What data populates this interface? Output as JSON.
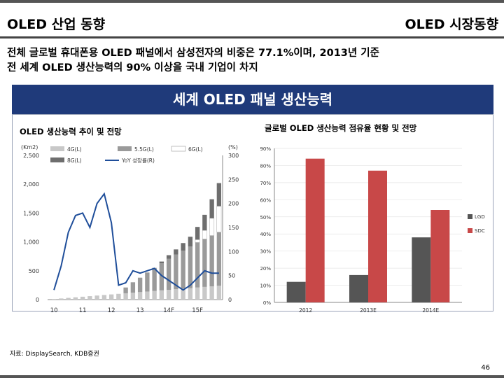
{
  "header": {
    "left_title": "OLED 산업 동향",
    "right_title": "OLED 시장동향"
  },
  "summary": {
    "line1": "전체 글로벌 휴대폰용 OLED 패널에서 삼성전자의 비중은 77.1%이며, 2013년 기준",
    "line2": "전 세계 OLED 생산능력의 90% 이상을 국내 기업이 차지"
  },
  "band_title": "세계 OLED 패널 생산능력",
  "footer": {
    "source": "자료: DisplaySearch, KDB증권",
    "page": "46"
  },
  "colors": {
    "band": "#1f3a7a",
    "g4": "#c8c8c8",
    "g55": "#9a9a9a",
    "g6": "#ffffff",
    "g8": "#6e6e6e",
    "yoy": "#1f4e9a",
    "lgd": "#555555",
    "sdc": "#c84848"
  },
  "chart_data": [
    {
      "type": "bar",
      "title": "OLED 생산능력 추이 및 전망",
      "ylabel": "(Km2)",
      "y2label": "(%)",
      "ylim": [
        0,
        2500
      ],
      "y2lim": [
        0,
        300
      ],
      "yticks": [
        "0",
        "500",
        "1,000",
        "1,500",
        "2,000",
        "2,500"
      ],
      "y2ticks": [
        "0",
        "50",
        "100",
        "150",
        "200",
        "250",
        "300"
      ],
      "x_labels": [
        "10",
        "11",
        "12",
        "13",
        "14F",
        "15F"
      ],
      "legend": [
        "4G(L)",
        "5.5G(L)",
        "6G(L)",
        "8G(L)",
        "YoY 성장률(R)"
      ],
      "stacked": true,
      "series": [
        {
          "name": "4G(L)",
          "values": [
            10,
            20,
            30,
            40,
            50,
            60,
            70,
            80,
            90,
            100,
            110,
            120,
            130,
            140,
            150,
            160,
            170,
            180,
            190,
            200,
            210,
            220,
            230,
            240
          ]
        },
        {
          "name": "5.5G(L)",
          "values": [
            0,
            0,
            0,
            0,
            0,
            0,
            0,
            0,
            0,
            0,
            100,
            180,
            250,
            330,
            400,
            470,
            540,
            600,
            660,
            720,
            780,
            830,
            880,
            930
          ]
        },
        {
          "name": "6G(L)",
          "values": [
            0,
            0,
            0,
            0,
            0,
            0,
            0,
            0,
            0,
            0,
            0,
            0,
            0,
            0,
            0,
            0,
            0,
            0,
            0,
            0,
            50,
            150,
            300,
            450
          ]
        },
        {
          "name": "8G(L)",
          "values": [
            0,
            0,
            0,
            0,
            0,
            0,
            0,
            0,
            0,
            0,
            0,
            0,
            0,
            0,
            0,
            30,
            60,
            90,
            130,
            170,
            220,
            270,
            330,
            400
          ]
        }
      ],
      "line_series": {
        "name": "YoY 성장률(R)",
        "values": [
          20,
          70,
          140,
          175,
          180,
          150,
          200,
          220,
          160,
          30,
          35,
          60,
          55,
          60,
          65,
          50,
          40,
          30,
          20,
          30,
          45,
          60,
          55,
          55
        ]
      }
    },
    {
      "type": "bar",
      "title": "글로벌 OLED 생산능력 점유율 현황 및 전망",
      "categories": [
        "2012",
        "2013E",
        "2014E"
      ],
      "ylim": [
        0,
        90
      ],
      "yticks": [
        "0%",
        "10%",
        "20%",
        "30%",
        "40%",
        "50%",
        "60%",
        "70%",
        "80%",
        "90%"
      ],
      "series": [
        {
          "name": "LGD",
          "values": [
            12,
            16,
            38
          ]
        },
        {
          "name": "SDC",
          "values": [
            84,
            77,
            54
          ]
        }
      ]
    }
  ]
}
